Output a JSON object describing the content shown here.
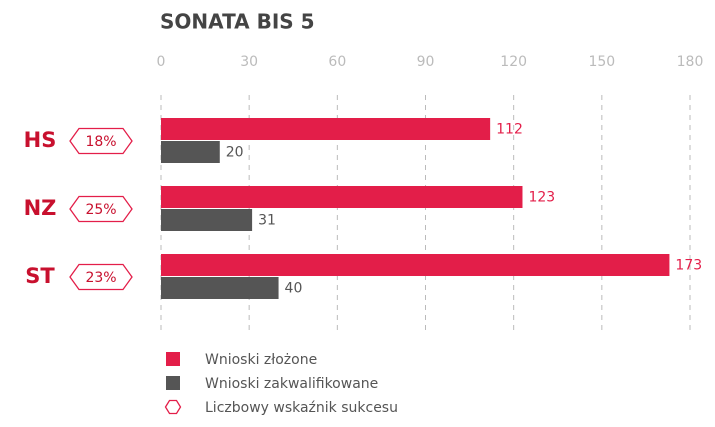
{
  "chart_data": {
    "type": "bar",
    "orientation": "horizontal",
    "title": "SONATA BIS 5",
    "categories": [
      "HS",
      "NZ",
      "ST"
    ],
    "series": [
      {
        "name": "Wnioski złożone",
        "color": "#e31e49",
        "values": [
          112,
          123,
          173
        ]
      },
      {
        "name": "Wnioski zakwalifikowane",
        "color": "#555555",
        "values": [
          20,
          31,
          40
        ]
      }
    ],
    "success_rate": {
      "name": "Liczbowy wskaźnik sukcesu",
      "color": "#e31e49",
      "values": [
        18,
        25,
        23
      ],
      "value_labels": [
        "18%",
        "25%",
        "23%"
      ]
    },
    "xlim": [
      0,
      180
    ],
    "xticks": [
      0,
      30,
      60,
      90,
      120,
      150,
      180
    ],
    "grid": true
  }
}
